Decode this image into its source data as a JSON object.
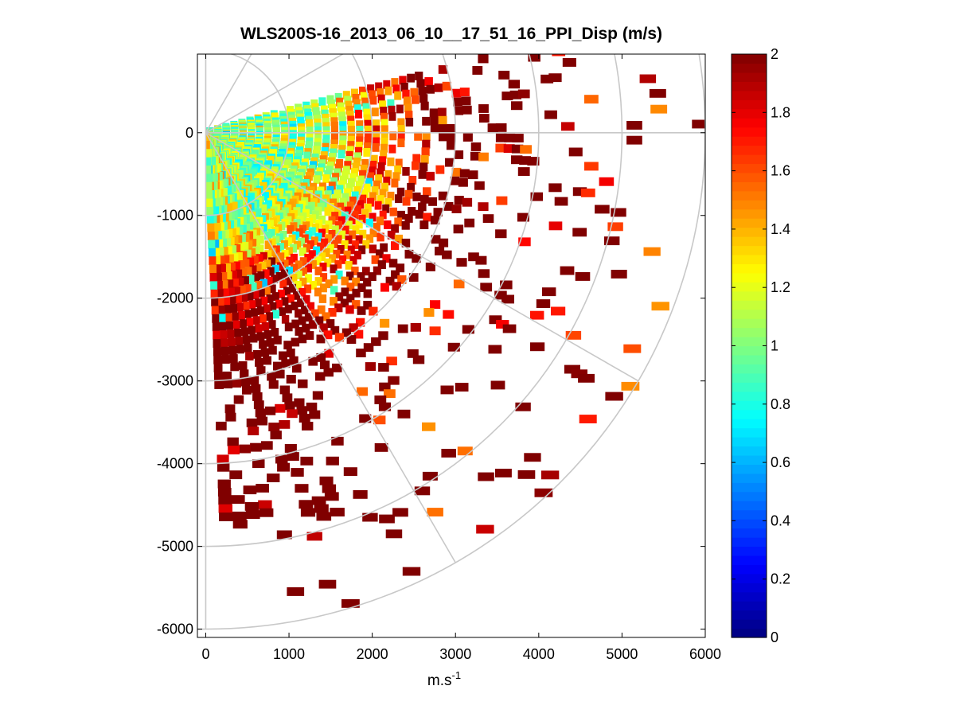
{
  "chart_data": {
    "type": "heatmap",
    "subtype": "polar-ppi-scan",
    "title": "WLS200S-16_2013_06_10__17_51_16_PPI_Disp (m/s)",
    "xlabel_base": "m.s",
    "xlabel_sup": "-1",
    "ylabel": "",
    "xlim": [
      -100,
      6000
    ],
    "ylim": [
      -6100,
      950
    ],
    "x_ticks": [
      0,
      1000,
      2000,
      3000,
      4000,
      5000,
      6000
    ],
    "x_tick_labels": [
      "0",
      "1000",
      "2000",
      "3000",
      "4000",
      "5000",
      "6000"
    ],
    "y_ticks": [
      0,
      -1000,
      -2000,
      -3000,
      -4000,
      -5000,
      -6000
    ],
    "y_tick_labels": [
      "0",
      "-1000",
      "-2000",
      "-3000",
      "-4000",
      "-5000",
      "-6000"
    ],
    "polar_grid": {
      "range_rings_m": [
        1000,
        2000,
        3000,
        4000,
        5000,
        6000
      ],
      "spoke_angles_deg": [
        0,
        -30,
        -60,
        -90,
        30,
        60,
        90
      ]
    },
    "scan": {
      "azimuth_start_deg": 15,
      "azimuth_end_deg": -87,
      "azimuth_step_deg": 2,
      "range_gate_m": 100,
      "max_range_m": 6000,
      "description": "Velocity dispersion per range gate; low values (~1 m/s) near the lidar, saturating to 2 m/s with range; sparse returns beyond 3000 m"
    },
    "colorbar": {
      "colormap": "jet",
      "clim": [
        0,
        2
      ],
      "ticks": [
        0,
        0.2,
        0.4,
        0.6,
        0.8,
        1,
        1.2,
        1.4,
        1.6,
        1.8,
        2
      ],
      "tick_labels": [
        "0",
        "0.2",
        "0.4",
        "0.6",
        "0.8",
        "1",
        "1.2",
        "1.4",
        "1.6",
        "1.8",
        "2"
      ]
    },
    "colors": {
      "grid": "#c8c8c8",
      "axis": "#000000",
      "background": "#ffffff"
    }
  }
}
